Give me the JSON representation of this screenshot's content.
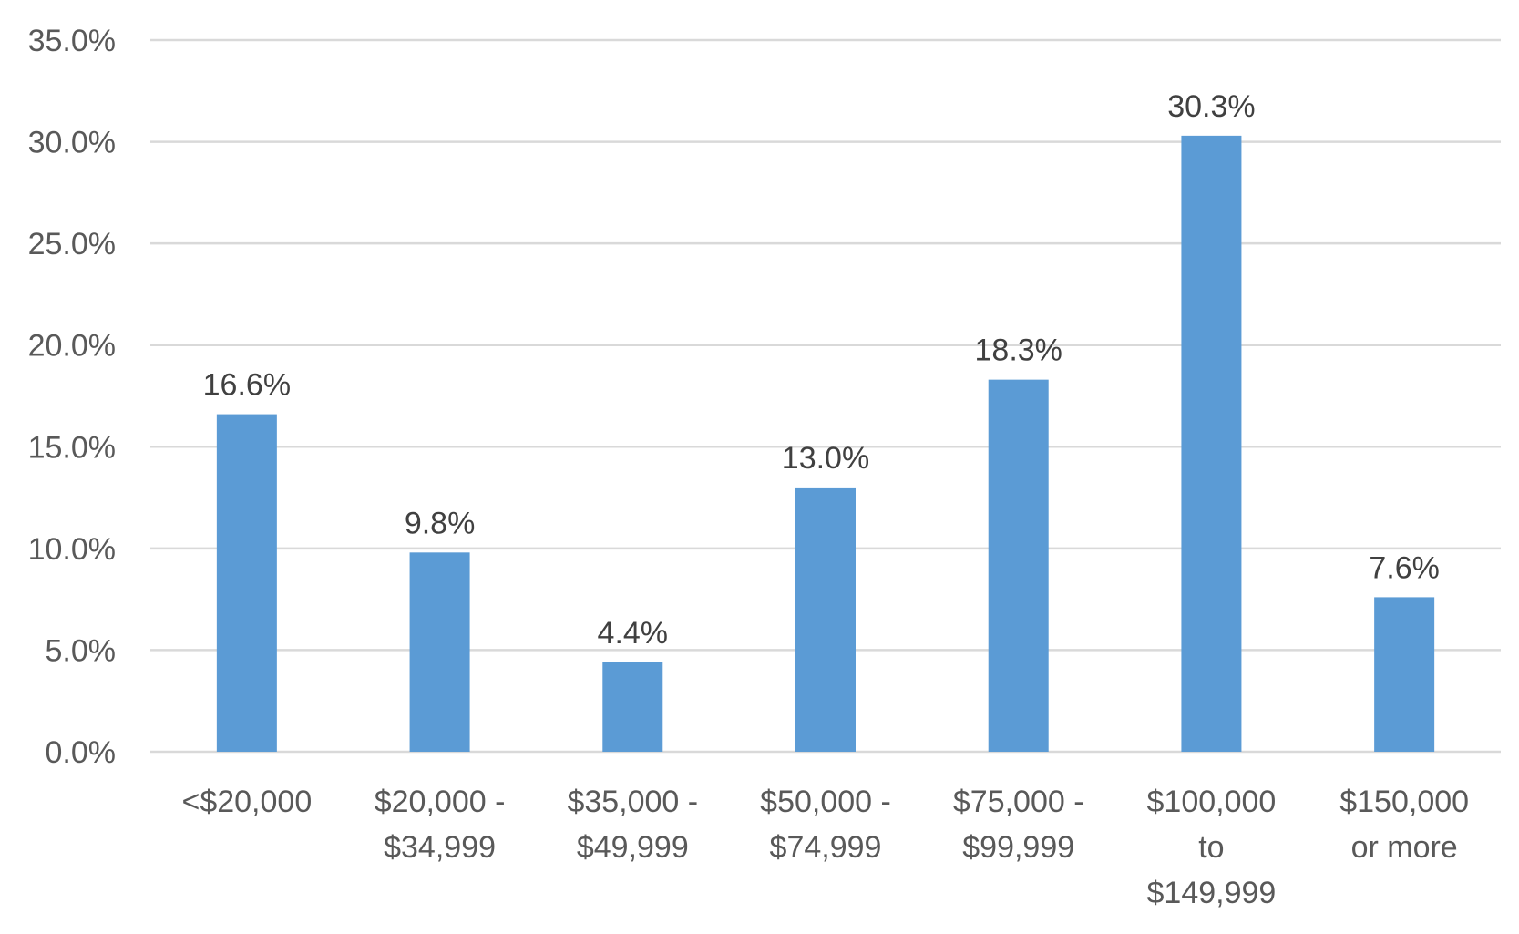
{
  "chart_data": {
    "type": "bar",
    "title": "",
    "xlabel": "",
    "ylabel": "",
    "categories": [
      [
        "<$20,000"
      ],
      [
        "$20,000 -",
        "$34,999"
      ],
      [
        "$35,000 -",
        "$49,999"
      ],
      [
        "$50,000 -",
        "$74,999"
      ],
      [
        "$75,000 -",
        "$99,999"
      ],
      [
        "$100,000",
        "to",
        "$149,999"
      ],
      [
        "$150,000",
        "or more"
      ]
    ],
    "values": [
      16.6,
      9.8,
      4.4,
      13.0,
      18.3,
      30.3,
      7.6
    ],
    "data_labels": [
      "16.6%",
      "9.8%",
      "4.4%",
      "13.0%",
      "18.3%",
      "30.3%",
      "7.6%"
    ],
    "ylim": [
      0,
      35
    ],
    "yticks": [
      0,
      5,
      10,
      15,
      20,
      25,
      30,
      35
    ],
    "ytick_labels": [
      "0.0%",
      "5.0%",
      "10.0%",
      "15.0%",
      "20.0%",
      "25.0%",
      "30.0%",
      "35.0%"
    ],
    "grid": true,
    "legend": "none",
    "bar_color": "#5b9bd5",
    "grid_color": "#d9d9d9"
  }
}
